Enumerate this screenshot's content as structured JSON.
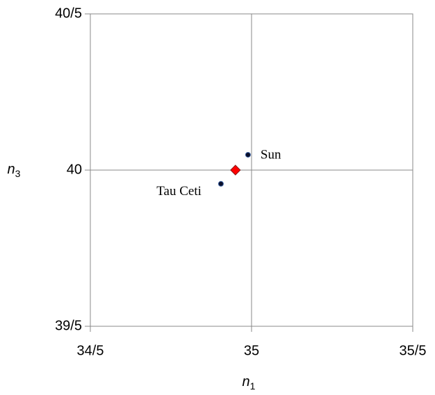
{
  "chart_data": {
    "type": "scatter",
    "x_label": {
      "symbol": "n",
      "subscript": "1"
    },
    "y_label": {
      "symbol": "n",
      "subscript": "3"
    },
    "xlim": [
      34.5,
      35.5
    ],
    "ylim": [
      39.5,
      40.5
    ],
    "xticks": [
      {
        "value": 34.5,
        "label": "34/5"
      },
      {
        "value": 35,
        "label": "35"
      },
      {
        "value": 35.5,
        "label": "35/5"
      }
    ],
    "yticks": [
      {
        "value": 39.5,
        "label": "39/5"
      },
      {
        "value": 40,
        "label": "40"
      },
      {
        "value": 40.5,
        "label": "40/5"
      }
    ],
    "grid": true,
    "points": [
      {
        "label": "Sun",
        "x": 34.989,
        "y": 40.049,
        "color": "#0a0f2a"
      },
      {
        "label": "Tau Ceti",
        "x": 34.905,
        "y": 39.956,
        "color": "#0a0f2a"
      }
    ],
    "highlight": {
      "x": 34.95,
      "y": 40.0,
      "color": "#ff0000"
    }
  }
}
